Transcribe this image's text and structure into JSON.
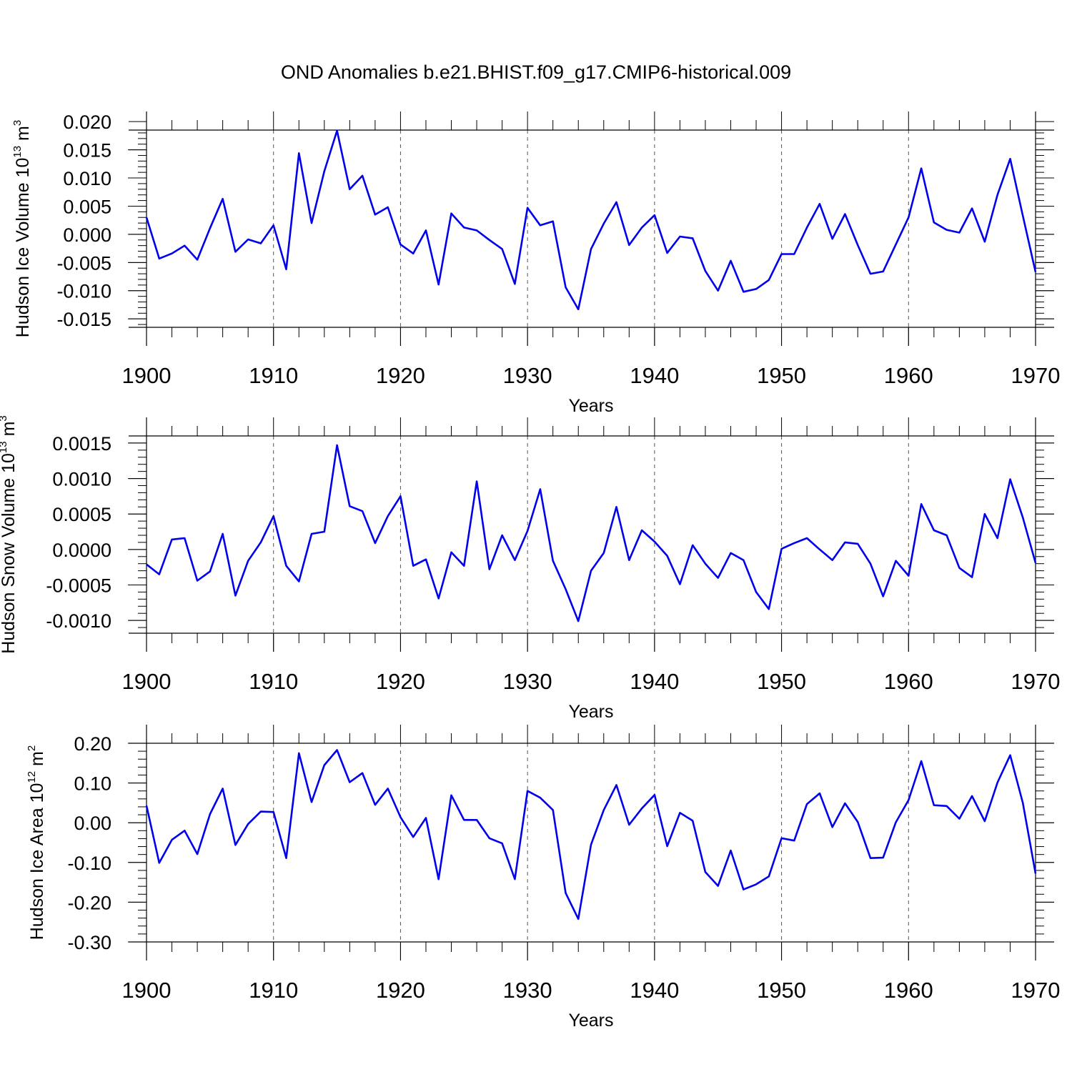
{
  "title": "OND Anomalies b.e21.BHIST.f09_g17.CMIP6-historical.009",
  "chart_data": [
    {
      "type": "line",
      "title": "OND Anomalies b.e21.BHIST.f09_g17.CMIP6-historical.009",
      "xlabel": "Years",
      "ylabel_main": "Hudson Ice Volume 10",
      "ylabel_sup1": "13",
      "ylabel_mid": " m",
      "ylabel_sup2": "3",
      "xlim": [
        1900,
        1970
      ],
      "ylim": [
        -0.0165,
        0.0185
      ],
      "yticks": [
        0.02,
        0.015,
        0.01,
        0.005,
        0.0,
        -0.005,
        -0.01,
        -0.015
      ],
      "ytick_labels": [
        "0.020",
        "0.015",
        "0.010",
        "0.005",
        "0.000",
        "-0.005",
        "-0.010",
        "-0.015"
      ],
      "xticks": [
        1900,
        1910,
        1920,
        1930,
        1940,
        1950,
        1960,
        1970
      ],
      "xtick_labels": [
        "1900",
        "1910",
        "1920",
        "1930",
        "1940",
        "1950",
        "1960",
        "1970"
      ],
      "series": [
        {
          "name": "Hudson Ice Volume",
          "color": "#0000ee",
          "x": [
            1900,
            1901,
            1902,
            1903,
            1904,
            1905,
            1906,
            1907,
            1908,
            1909,
            1910,
            1911,
            1912,
            1913,
            1914,
            1915,
            1916,
            1917,
            1918,
            1919,
            1920,
            1921,
            1922,
            1923,
            1924,
            1925,
            1926,
            1927,
            1928,
            1929,
            1930,
            1931,
            1932,
            1933,
            1934,
            1935,
            1936,
            1937,
            1938,
            1939,
            1940,
            1941,
            1942,
            1943,
            1944,
            1945,
            1946,
            1947,
            1948,
            1949,
            1950,
            1951,
            1952,
            1953,
            1954,
            1955,
            1956,
            1957,
            1958,
            1959,
            1960,
            1961,
            1962,
            1963,
            1964,
            1965,
            1966,
            1967,
            1968,
            1969,
            1970
          ],
          "values": [
            0.003,
            -0.0043,
            -0.0034,
            -0.002,
            -0.0045,
            0.0011,
            0.0063,
            -0.0031,
            -0.0009,
            -0.0016,
            0.0016,
            -0.0062,
            0.0144,
            0.002,
            0.0112,
            0.0184,
            0.008,
            0.0104,
            0.0035,
            0.0048,
            -0.0018,
            -0.0034,
            0.0007,
            -0.0089,
            0.0037,
            0.0012,
            0.0007,
            -0.001,
            -0.0026,
            -0.0088,
            0.0047,
            0.0016,
            0.0023,
            -0.0094,
            -0.0133,
            -0.0026,
            0.0019,
            0.0057,
            -0.0019,
            0.0012,
            0.0034,
            -0.0033,
            -0.0004,
            -0.0007,
            -0.0065,
            -0.01,
            -0.0047,
            -0.0102,
            -0.0097,
            -0.0081,
            -0.0035,
            -0.0035,
            0.0012,
            0.0054,
            -0.0008,
            0.0036,
            -0.0019,
            -0.007,
            -0.0066,
            -0.0018,
            0.003,
            0.0117,
            0.0021,
            0.0008,
            0.0003,
            0.0046,
            -0.0013,
            0.007,
            0.0134,
            0.0033,
            -0.0067
          ]
        }
      ]
    },
    {
      "type": "line",
      "xlabel": "Years",
      "ylabel_main": "Hudson Snow Volume 10",
      "ylabel_sup1": "13",
      "ylabel_mid": " m",
      "ylabel_sup2": "3",
      "xlim": [
        1900,
        1970
      ],
      "ylim": [
        -0.00118,
        0.0016
      ],
      "yticks": [
        0.0015,
        0.001,
        0.0005,
        0.0,
        -0.0005,
        -0.001
      ],
      "ytick_labels": [
        "0.0015",
        "0.0010",
        "0.0005",
        "0.0000",
        "-0.0005",
        "-0.0010"
      ],
      "xticks": [
        1900,
        1910,
        1920,
        1930,
        1940,
        1950,
        1960,
        1970
      ],
      "xtick_labels": [
        "1900",
        "1910",
        "1920",
        "1930",
        "1940",
        "1950",
        "1960",
        "1970"
      ],
      "series": [
        {
          "name": "Hudson Snow Volume",
          "color": "#0000ee",
          "x": [
            1900,
            1901,
            1902,
            1903,
            1904,
            1905,
            1906,
            1907,
            1908,
            1909,
            1910,
            1911,
            1912,
            1913,
            1914,
            1915,
            1916,
            1917,
            1918,
            1919,
            1920,
            1921,
            1922,
            1923,
            1924,
            1925,
            1926,
            1927,
            1928,
            1929,
            1930,
            1931,
            1932,
            1933,
            1934,
            1935,
            1936,
            1937,
            1938,
            1939,
            1940,
            1941,
            1942,
            1943,
            1944,
            1945,
            1946,
            1947,
            1948,
            1949,
            1950,
            1951,
            1952,
            1953,
            1954,
            1955,
            1956,
            1957,
            1958,
            1959,
            1960,
            1961,
            1962,
            1963,
            1964,
            1965,
            1966,
            1967,
            1968,
            1969,
            1970
          ],
          "values": [
            -0.00021,
            -0.00035,
            0.00014,
            0.00016,
            -0.00044,
            -0.00031,
            0.00022,
            -0.00065,
            -0.00016,
            0.0001,
            0.00047,
            -0.00023,
            -0.00045,
            0.00022,
            0.00025,
            0.00147,
            0.00061,
            0.00054,
            9e-05,
            0.00047,
            0.00075,
            -0.00023,
            -0.00014,
            -0.00069,
            -4e-05,
            -0.00023,
            0.00096,
            -0.00028,
            0.0002,
            -0.00015,
            0.00026,
            0.00085,
            -0.00016,
            -0.00056,
            -0.00101,
            -0.0003,
            -5e-05,
            0.0006,
            -0.00015,
            0.00027,
            0.00011,
            -9e-05,
            -0.00049,
            6e-05,
            -0.0002,
            -0.0004,
            -5e-05,
            -0.00015,
            -0.0006,
            -0.00084,
            1e-05,
            9e-05,
            0.00016,
            0.0,
            -0.00015,
            0.0001,
            8e-05,
            -0.0002,
            -0.00066,
            -0.00016,
            -0.00037,
            0.00064,
            0.00027,
            0.0002,
            -0.00026,
            -0.00039,
            0.0005,
            0.00016,
            0.00099,
            0.00045,
            -0.00019
          ]
        }
      ]
    },
    {
      "type": "line",
      "xlabel": "Years",
      "ylabel_main": "Hudson Ice Area 10",
      "ylabel_sup1": "12",
      "ylabel_mid": " m",
      "ylabel_sup2": "2",
      "xlim": [
        1900,
        1970
      ],
      "ylim": [
        -0.3,
        0.2
      ],
      "yticks": [
        0.2,
        0.1,
        0.0,
        -0.1,
        -0.2,
        -0.3
      ],
      "ytick_labels": [
        "0.20",
        "0.10",
        "0.00",
        "-0.10",
        "-0.20",
        "-0.30"
      ],
      "xticks": [
        1900,
        1910,
        1920,
        1930,
        1940,
        1950,
        1960,
        1970
      ],
      "xtick_labels": [
        "1900",
        "1910",
        "1920",
        "1930",
        "1940",
        "1950",
        "1960",
        "1970"
      ],
      "series": [
        {
          "name": "Hudson Ice Area",
          "color": "#0000ee",
          "x": [
            1900,
            1901,
            1902,
            1903,
            1904,
            1905,
            1906,
            1907,
            1908,
            1909,
            1910,
            1911,
            1912,
            1913,
            1914,
            1915,
            1916,
            1917,
            1918,
            1919,
            1920,
            1921,
            1922,
            1923,
            1924,
            1925,
            1926,
            1927,
            1928,
            1929,
            1930,
            1931,
            1932,
            1933,
            1934,
            1935,
            1936,
            1937,
            1938,
            1939,
            1940,
            1941,
            1942,
            1943,
            1944,
            1945,
            1946,
            1947,
            1948,
            1949,
            1950,
            1951,
            1952,
            1953,
            1954,
            1955,
            1956,
            1957,
            1958,
            1959,
            1960,
            1961,
            1962,
            1963,
            1964,
            1965,
            1966,
            1967,
            1968,
            1969,
            1970
          ],
          "values": [
            0.043,
            -0.101,
            -0.043,
            -0.02,
            -0.079,
            0.022,
            0.086,
            -0.056,
            -0.003,
            0.028,
            0.027,
            -0.089,
            0.175,
            0.052,
            0.145,
            0.183,
            0.102,
            0.125,
            0.045,
            0.086,
            0.014,
            -0.036,
            0.012,
            -0.142,
            0.069,
            0.007,
            0.007,
            -0.039,
            -0.052,
            -0.142,
            0.08,
            0.063,
            0.032,
            -0.177,
            -0.242,
            -0.055,
            0.032,
            0.095,
            -0.005,
            0.036,
            0.07,
            -0.059,
            0.025,
            0.005,
            -0.124,
            -0.159,
            -0.07,
            -0.168,
            -0.155,
            -0.135,
            -0.039,
            -0.045,
            0.047,
            0.074,
            -0.011,
            0.049,
            0.002,
            -0.089,
            -0.088,
            0.001,
            0.057,
            0.155,
            0.044,
            0.042,
            0.01,
            0.067,
            0.004,
            0.101,
            0.17,
            0.05,
            -0.128
          ]
        }
      ]
    }
  ]
}
